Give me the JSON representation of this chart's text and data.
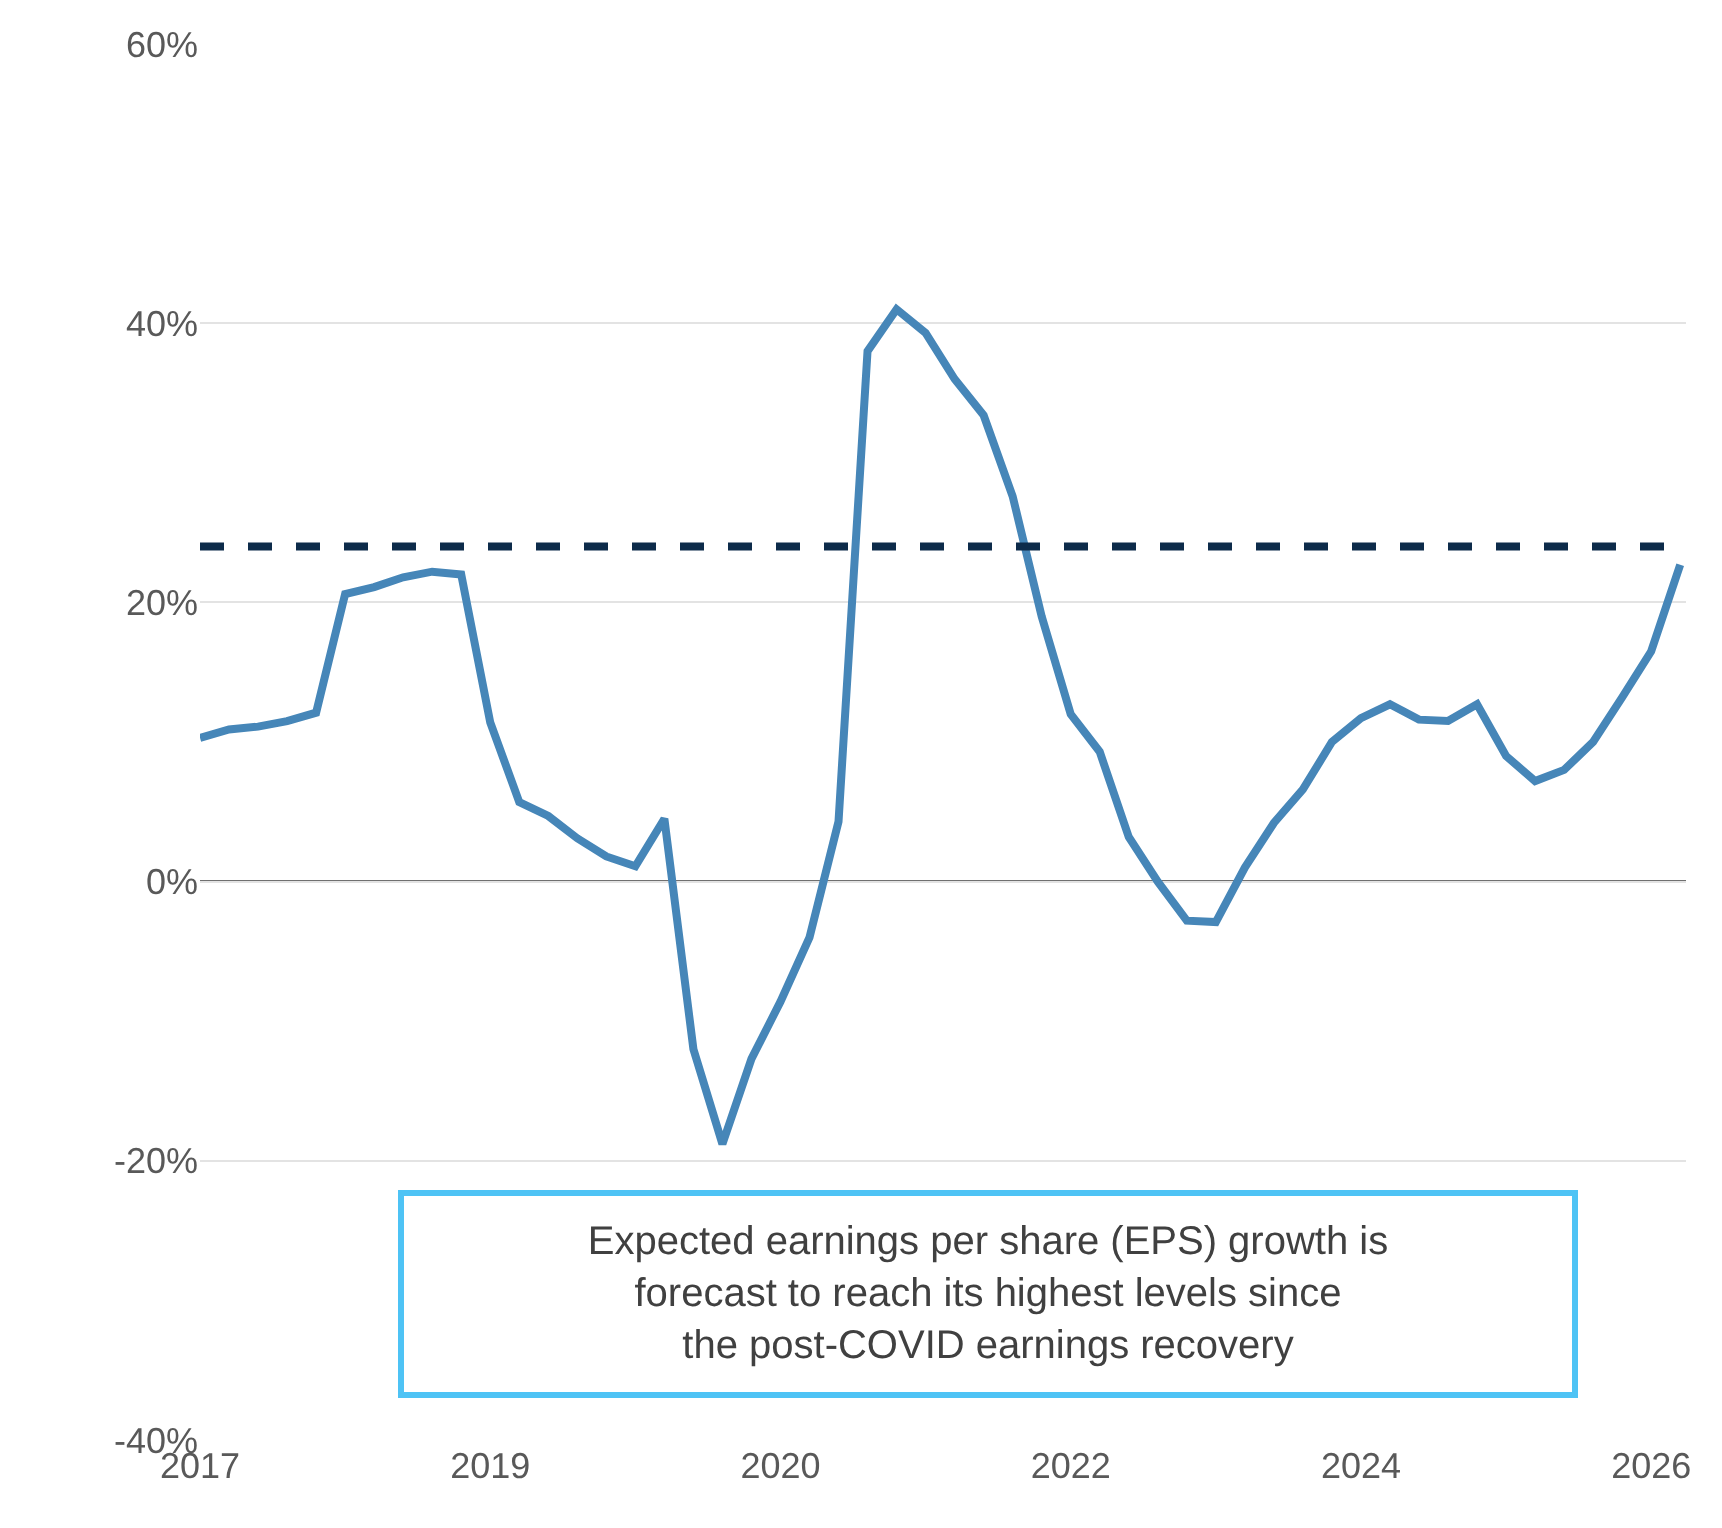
{
  "chart_data": {
    "type": "line",
    "categories": [
      "2017",
      null,
      null,
      null,
      null,
      null,
      null,
      null,
      null,
      null,
      "2019",
      null,
      null,
      null,
      null,
      null,
      null,
      null,
      null,
      null,
      "2020",
      null,
      null,
      null,
      null,
      null,
      null,
      null,
      null,
      null,
      "2022",
      null,
      null,
      null,
      null,
      null,
      null,
      null,
      null,
      null,
      "2024",
      null,
      null,
      null,
      null,
      null,
      null,
      null,
      null,
      null,
      "2026",
      null
    ],
    "series": [
      {
        "color": "#4686b8",
        "values": [
          10.3,
          10.9,
          11.1,
          11.5,
          12.1,
          20.6,
          21.1,
          21.8,
          22.2,
          22.0,
          11.4,
          5.7,
          4.7,
          3.1,
          1.8,
          1.1,
          4.5,
          -12,
          -18.8,
          -12.7,
          -8.6,
          -4,
          4.3,
          38,
          41,
          39.3,
          36,
          33.4,
          27.6,
          19,
          12,
          9.3,
          3.2,
          0,
          -2.8,
          -2.9,
          1,
          4.2,
          6.6,
          10,
          11.7,
          12.7,
          11.6,
          11.5,
          12.7,
          9,
          7.2,
          8,
          10,
          13.2,
          16.5,
          22.7
        ]
      }
    ],
    "ylim": [
      -40,
      60
    ],
    "yticks": [
      {
        "value": -40,
        "label": "-40%"
      },
      {
        "value": -20,
        "label": "-20%"
      },
      {
        "value": 0,
        "label": "0%"
      },
      {
        "value": 20,
        "label": "20%"
      },
      {
        "value": 40,
        "label": "40%"
      },
      {
        "value": 60,
        "label": "60%"
      }
    ],
    "ref_lines": [
      {
        "axis": "y",
        "value": 24,
        "color": "#0d2b4a",
        "line_style": "dashed"
      },
      {
        "axis": "y",
        "value": 0,
        "color": "#404040",
        "line_style": "solid"
      }
    ],
    "annotations": [
      "Expected earnings per share (EPS) growth is forecast to reach its highest levels since the post-COVID earnings recovery"
    ],
    "grid": "y",
    "marker": "none",
    "line_style": "solid"
  }
}
